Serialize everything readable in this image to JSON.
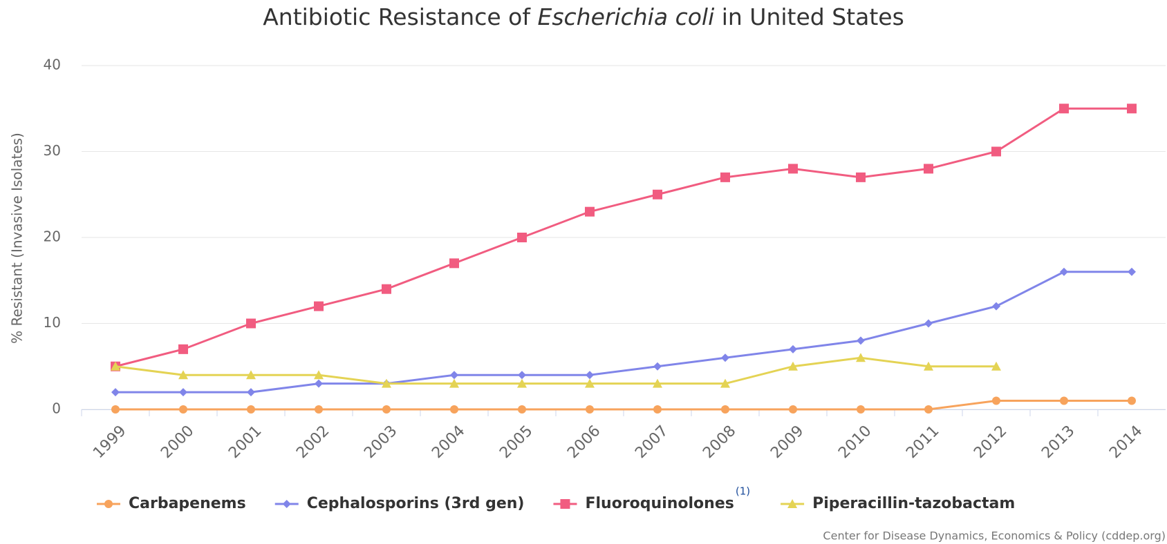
{
  "chart_data": {
    "type": "line",
    "title": [
      "Antibiotic Resistance of",
      "Escherichia coli",
      "in United States"
    ],
    "y_axis_label": "% Resistant (Invasive Isolates)",
    "categories": [
      "1999",
      "2000",
      "2001",
      "2002",
      "2003",
      "2004",
      "2005",
      "2006",
      "2007",
      "2008",
      "2009",
      "2010",
      "2011",
      "2012",
      "2013",
      "2014"
    ],
    "series": [
      {
        "name": "Carbapenems",
        "color": "#f7a35c",
        "marker": "circle",
        "values": [
          0,
          0,
          0,
          0,
          0,
          0,
          0,
          0,
          0,
          0,
          0,
          0,
          0,
          1,
          1,
          1
        ]
      },
      {
        "name": "Cephalosporins (3rd gen)",
        "color": "#8085e9",
        "marker": "diamond",
        "values": [
          2,
          2,
          2,
          3,
          3,
          4,
          4,
          4,
          5,
          6,
          7,
          8,
          10,
          12,
          16,
          16
        ]
      },
      {
        "name": "Fluoroquinolones",
        "color": "#f15c80",
        "marker": "square",
        "footnote": "(1)",
        "values": [
          5,
          7,
          10,
          12,
          14,
          17,
          20,
          23,
          25,
          27,
          28,
          27,
          28,
          30,
          35,
          35
        ]
      },
      {
        "name": "Piperacillin-tazobactam",
        "color": "#e4d354",
        "marker": "triangle",
        "values": [
          5,
          4,
          4,
          4,
          3,
          3,
          3,
          3,
          3,
          3,
          5,
          6,
          5,
          5,
          null,
          null
        ]
      }
    ],
    "ylim": [
      0,
      40
    ],
    "yticks": [
      0,
      10,
      20,
      30,
      40
    ],
    "grid": true,
    "legend": "bottom",
    "credit": "Center for Disease Dynamics, Economics & Policy (cddep.org)"
  }
}
